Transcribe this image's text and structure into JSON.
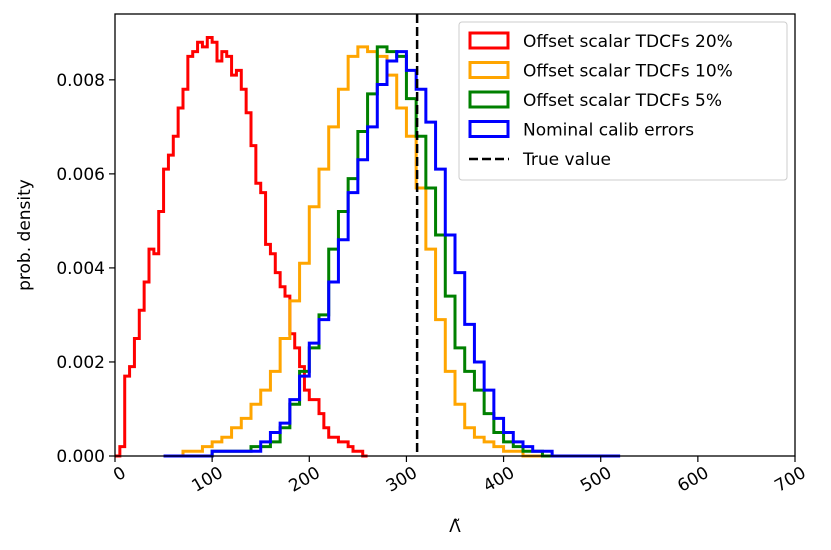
{
  "chart_data": {
    "type": "histogram",
    "title": "",
    "xlabel": "Λ̃",
    "ylabel": "prob. density",
    "xlim": [
      0,
      700
    ],
    "ylim": [
      0,
      0.0094
    ],
    "x_ticks": [
      "0",
      "100",
      "200",
      "300",
      "400",
      "500",
      "600",
      "700"
    ],
    "x_tick_values": [
      0,
      100,
      200,
      300,
      400,
      500,
      600,
      700
    ],
    "y_ticks": [
      "0.000",
      "0.002",
      "0.004",
      "0.006",
      "0.008"
    ],
    "y_tick_values": [
      0.0,
      0.002,
      0.004,
      0.006,
      0.008
    ],
    "grid": false,
    "legend_position": "top-right",
    "true_value": 311,
    "series": [
      {
        "name": "Offset scalar TDCFs 20%",
        "color": "#ff0000",
        "x": [
          0,
          5,
          10,
          15,
          20,
          25,
          30,
          35,
          40,
          45,
          50,
          55,
          60,
          65,
          70,
          75,
          80,
          85,
          90,
          95,
          100,
          105,
          110,
          115,
          120,
          125,
          130,
          135,
          140,
          145,
          150,
          155,
          160,
          165,
          170,
          175,
          180,
          185,
          190,
          195,
          200,
          205,
          210,
          215,
          220,
          225,
          230,
          235,
          240,
          245,
          250,
          255
        ],
        "y": [
          0.0,
          0.0002,
          0.0017,
          0.0019,
          0.0025,
          0.0031,
          0.0037,
          0.0044,
          0.0043,
          0.0052,
          0.0061,
          0.0064,
          0.0068,
          0.0074,
          0.0078,
          0.0085,
          0.0086,
          0.0088,
          0.0087,
          0.0089,
          0.0088,
          0.0084,
          0.0086,
          0.0085,
          0.0081,
          0.0082,
          0.0078,
          0.0073,
          0.0066,
          0.0058,
          0.0056,
          0.0045,
          0.0043,
          0.0039,
          0.0036,
          0.0034,
          0.0026,
          0.0023,
          0.0019,
          0.0014,
          0.0012,
          0.0012,
          0.0009,
          0.0006,
          0.0004,
          0.0004,
          0.0003,
          0.0003,
          0.0002,
          0.0001,
          0.0001,
          0.0
        ]
      },
      {
        "name": "Offset scalar TDCFs 10%",
        "color": "#ffa500",
        "x": [
          50,
          60,
          70,
          80,
          90,
          100,
          110,
          120,
          130,
          140,
          150,
          160,
          170,
          180,
          190,
          200,
          210,
          220,
          230,
          240,
          250,
          260,
          270,
          280,
          290,
          300,
          310,
          320,
          330,
          340,
          350,
          360,
          370,
          380,
          390,
          400,
          410,
          420,
          430,
          440
        ],
        "y": [
          0.0,
          0.0,
          0.0001,
          0.0001,
          0.0002,
          0.0003,
          0.0004,
          0.0006,
          0.0008,
          0.0011,
          0.0014,
          0.0018,
          0.0025,
          0.0033,
          0.0041,
          0.0053,
          0.0061,
          0.007,
          0.0078,
          0.0085,
          0.0087,
          0.0086,
          0.0085,
          0.0081,
          0.0074,
          0.0068,
          0.0057,
          0.0044,
          0.0029,
          0.0018,
          0.0011,
          0.0006,
          0.0004,
          0.0003,
          0.0002,
          0.0001,
          0.0001,
          0.0,
          0.0,
          0.0
        ]
      },
      {
        "name": "Offset scalar TDCFs 5%",
        "color": "#008000",
        "x": [
          60,
          80,
          100,
          120,
          140,
          160,
          170,
          180,
          190,
          200,
          210,
          220,
          230,
          240,
          250,
          260,
          270,
          280,
          290,
          300,
          310,
          320,
          330,
          340,
          350,
          360,
          370,
          380,
          390,
          400,
          410,
          420,
          430,
          440,
          450
        ],
        "y": [
          0.0,
          0.0,
          0.0001,
          0.0001,
          0.0002,
          0.0003,
          0.0006,
          0.0011,
          0.0018,
          0.0023,
          0.003,
          0.0044,
          0.0052,
          0.0059,
          0.0069,
          0.0077,
          0.0087,
          0.0086,
          0.0085,
          0.0076,
          0.0068,
          0.0057,
          0.0047,
          0.0034,
          0.0023,
          0.0018,
          0.0014,
          0.0009,
          0.0005,
          0.0003,
          0.0002,
          0.0001,
          0.0001,
          0.0,
          0.0
        ]
      },
      {
        "name": "Nominal calib errors",
        "color": "#0000ff",
        "x": [
          50,
          100,
          150,
          160,
          170,
          180,
          190,
          200,
          210,
          220,
          230,
          240,
          250,
          260,
          270,
          280,
          290,
          300,
          310,
          320,
          330,
          340,
          350,
          360,
          370,
          380,
          390,
          400,
          410,
          420,
          430,
          440,
          450,
          460,
          470
        ],
        "y": [
          0.0,
          0.0001,
          0.0003,
          0.0005,
          0.0007,
          0.0012,
          0.0017,
          0.0024,
          0.0029,
          0.0037,
          0.0046,
          0.0056,
          0.0063,
          0.007,
          0.0079,
          0.0084,
          0.0086,
          0.0082,
          0.0078,
          0.0071,
          0.0061,
          0.0047,
          0.0039,
          0.0028,
          0.002,
          0.0014,
          0.0008,
          0.0005,
          0.0003,
          0.0002,
          0.0001,
          0.0001,
          0.0,
          0.0,
          0.0
        ]
      }
    ],
    "legend": [
      {
        "label": "Offset scalar TDCFs 20%",
        "color": "#ff0000",
        "style": "box"
      },
      {
        "label": "Offset scalar TDCFs 10%",
        "color": "#ffa500",
        "style": "box"
      },
      {
        "label": "Offset scalar TDCFs 5%",
        "color": "#008000",
        "style": "box"
      },
      {
        "label": "Nominal calib errors",
        "color": "#0000ff",
        "style": "box"
      },
      {
        "label": "True value",
        "color": "#000000",
        "style": "dashed"
      }
    ]
  }
}
